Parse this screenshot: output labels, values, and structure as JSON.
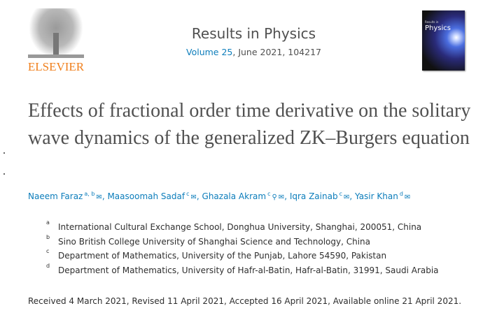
{
  "publisher": {
    "name": "ELSEVIER",
    "color": "#f07f1b"
  },
  "journal": {
    "title": "Results in Physics",
    "volume_link": "Volume 25",
    "issue_info": ", June 2021, 104217",
    "cover_small": "Results in",
    "cover_title": "Physics"
  },
  "article": {
    "title": "Effects of fractional order time derivative on the solitary wave dynamics of the generalized ZK–Burgers equation"
  },
  "authors": [
    {
      "name": "Naeem Faraz",
      "sup": "a, b",
      "icons": [
        "envelope-icon"
      ]
    },
    {
      "name": "Maasoomah Sadaf",
      "sup": "c",
      "icons": [
        "envelope-icon"
      ]
    },
    {
      "name": "Ghazala Akram",
      "sup": "c",
      "icons": [
        "person-icon",
        "envelope-icon"
      ]
    },
    {
      "name": "Iqra Zainab",
      "sup": "c",
      "icons": [
        "envelope-icon"
      ]
    },
    {
      "name": "Yasir Khan",
      "sup": "d",
      "icons": [
        "envelope-icon"
      ]
    }
  ],
  "link_color": "#0c7dbb",
  "affiliations": [
    {
      "label": "a",
      "text": "International Cultural Exchange School, Donghua University, Shanghai, 200051, China"
    },
    {
      "label": "b",
      "text": "Sino British College University of Shanghai Science and Technology, China"
    },
    {
      "label": "c",
      "text": "Department of Mathematics, University of the Punjab, Lahore 54590, Pakistan"
    },
    {
      "label": "d",
      "text": "Department of Mathematics, University of Hafr-al-Batin, Hafr-al-Batin, 31991, Saudi Arabia"
    }
  ],
  "dates": "Received 4 March 2021, Revised 11 April 2021, Accepted 16 April 2021, Available online 21 April 2021."
}
